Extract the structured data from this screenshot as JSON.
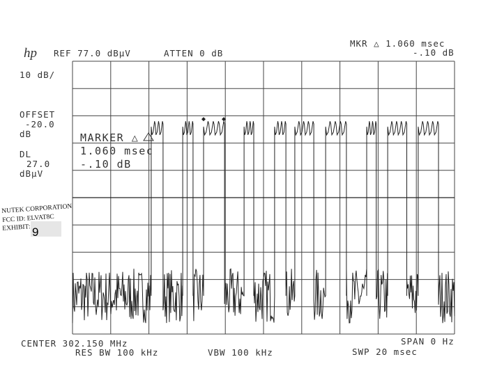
{
  "header": {
    "logo": "hp",
    "ref": "REF 77.0 dBµV",
    "atten": "ATTEN 0 dB",
    "mkr_line1": "MKR △ 1.060 msec",
    "mkr_line2": "-.10 dB"
  },
  "left_panel": {
    "scale": "10 dB/",
    "offset_label": "OFFSET",
    "offset_value": "-20.0",
    "offset_unit": "dB",
    "dl_label": "DL",
    "dl_value": "27.0",
    "dl_unit": "dBµV"
  },
  "marker_box": {
    "title": "MARKER △",
    "time": "1.060 msec",
    "level": "-.10 dB"
  },
  "stamp": {
    "line1": "NUTEK CORPORATION",
    "line2": "FCC ID:  ELVAT8C",
    "line3": "EXHIBIT:",
    "exhibit_number": "9"
  },
  "footer": {
    "center": "CENTER 302.150 MHz",
    "span": "SPAN 0 Hz",
    "res_bw": "RES BW 100 kHz",
    "vbw": "VBW 100 kHz",
    "sweep": "SWP 20 msec"
  },
  "chart_data": {
    "type": "line",
    "title": "",
    "xlabel": "",
    "ylabel": "",
    "x_unit": "msec",
    "y_unit": "dBµV",
    "xlim": [
      0,
      20
    ],
    "ylim": [
      -23,
      77
    ],
    "grid": true,
    "grid_divisions": [
      10,
      10
    ],
    "display_line_dBuV": 27.0,
    "peak_level_dBuV": 55,
    "noise_floor_dBuV": -9,
    "bursts": [
      {
        "start": 4.12,
        "end": 4.74,
        "pulses": 3
      },
      {
        "start": 5.77,
        "end": 6.31,
        "pulses": 3
      },
      {
        "start": 6.86,
        "end": 7.96,
        "pulses": 4
      },
      {
        "start": 8.98,
        "end": 9.49,
        "pulses": 3
      },
      {
        "start": 10.58,
        "end": 11.17,
        "pulses": 3
      },
      {
        "start": 11.64,
        "end": 12.63,
        "pulses": 4
      },
      {
        "start": 13.25,
        "end": 14.34,
        "pulses": 4
      },
      {
        "start": 15.4,
        "end": 15.9,
        "pulses": 3
      },
      {
        "start": 16.5,
        "end": 17.5,
        "pulses": 4
      },
      {
        "start": 18.1,
        "end": 19.16,
        "pulses": 4
      }
    ],
    "markers": {
      "reference_ms": 6.86,
      "delta_ms": 1.06,
      "delta_dB": -0.1
    },
    "trace_color": "#222222",
    "grid_color": "#444444"
  }
}
